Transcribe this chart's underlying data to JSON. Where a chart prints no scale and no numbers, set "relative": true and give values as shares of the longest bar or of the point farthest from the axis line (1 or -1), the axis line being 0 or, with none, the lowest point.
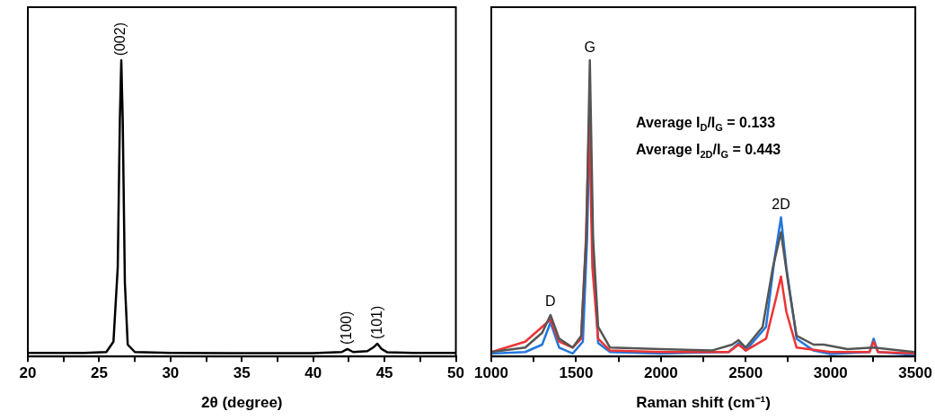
{
  "chart_data": [
    {
      "type": "line",
      "xlabel": "2θ (degree)",
      "relative": true,
      "xlim": [
        20,
        50
      ],
      "xticks": [
        20,
        {
          "value": 22.5,
          "label": null
        },
        25,
        {
          "value": 27.5,
          "label": null
        },
        30,
        {
          "value": 32.5,
          "label": null
        },
        35,
        {
          "value": 37.5,
          "label": null
        },
        40,
        {
          "value": 42.5,
          "label": null
        },
        45,
        {
          "value": 47.5,
          "label": null
        },
        50
      ],
      "series": [
        {
          "color": "#000000",
          "x": [
            20,
            24,
            25.5,
            26.0,
            26.3,
            26.45,
            26.55,
            26.65,
            26.8,
            27.0,
            27.5,
            30,
            35,
            40,
            42.0,
            42.4,
            42.8,
            43.8,
            44.2,
            44.5,
            44.8,
            45.2,
            47,
            50
          ],
          "values": [
            0.012,
            0.012,
            0.015,
            0.05,
            0.3,
            0.8,
            1,
            0.8,
            0.25,
            0.04,
            0.015,
            0.012,
            0.011,
            0.011,
            0.015,
            0.025,
            0.015,
            0.018,
            0.03,
            0.043,
            0.025,
            0.014,
            0.012,
            0.012
          ]
        }
      ],
      "annotations": [
        {
          "text": "(002)",
          "x": 26.55,
          "y": 1
        },
        {
          "text": "(100)",
          "x": 42.4,
          "y": 0.025
        },
        {
          "text": "(101)",
          "x": 44.5,
          "y": 0.043
        }
      ]
    },
    {
      "type": "line",
      "xlabel": "Raman shift (cm⁻¹)",
      "relative": true,
      "xlim": [
        1000,
        3500
      ],
      "xticks": [
        1000,
        {
          "value": 1250,
          "label": null
        },
        1500,
        {
          "value": 1750,
          "label": null
        },
        2000,
        {
          "value": 2250,
          "label": null
        },
        2500,
        {
          "value": 2750,
          "label": null
        },
        3000,
        {
          "value": 3250,
          "label": null
        },
        3500
      ],
      "series": [
        {
          "color": "#555555",
          "x": [
            1000,
            1200,
            1300,
            1349,
            1400,
            1480,
            1530,
            1560,
            1581,
            1600,
            1630,
            1700,
            2000,
            2300,
            2420,
            2458,
            2500,
            2600,
            2660,
            2708,
            2750,
            2800,
            2900,
            2960,
            3100,
            3254,
            3500
          ],
          "values": [
            0.015,
            0.03,
            0.08,
            0.14,
            0.06,
            0.03,
            0.07,
            0.4,
            1,
            0.4,
            0.1,
            0.03,
            0.025,
            0.02,
            0.04,
            0.055,
            0.03,
            0.1,
            0.3,
            0.42,
            0.25,
            0.07,
            0.04,
            0.04,
            0.025,
            0.03,
            0.015
          ]
        },
        {
          "color": "#ee3333",
          "x": [
            1000,
            1200,
            1300,
            1349,
            1400,
            1480,
            1530,
            1558,
            1577,
            1596,
            1630,
            1700,
            2000,
            2400,
            2458,
            2500,
            2620,
            2680,
            2708,
            2740,
            2800,
            3000,
            3230,
            3254,
            3280,
            3500
          ],
          "values": [
            0.015,
            0.05,
            0.1,
            0.125,
            0.05,
            0.03,
            0.06,
            0.4,
            0.8,
            0.3,
            0.06,
            0.02,
            0.015,
            0.015,
            0.04,
            0.02,
            0.06,
            0.2,
            0.27,
            0.15,
            0.03,
            0.015,
            0.015,
            0.05,
            0.015,
            0.01
          ]
        },
        {
          "color": "#2277dd",
          "x": [
            1000,
            1200,
            1300,
            1349,
            1400,
            1480,
            1540,
            1565,
            1581,
            1600,
            1630,
            1700,
            2000,
            2400,
            2458,
            2500,
            2620,
            2670,
            2708,
            2740,
            2800,
            2900,
            3000,
            3230,
            3254,
            3280,
            3500
          ],
          "values": [
            0.01,
            0.015,
            0.04,
            0.115,
            0.03,
            0.01,
            0.05,
            0.4,
            0.815,
            0.35,
            0.045,
            0.015,
            0.01,
            0.015,
            0.045,
            0.02,
            0.1,
            0.33,
            0.47,
            0.3,
            0.06,
            0.02,
            0.008,
            0.015,
            0.06,
            0.015,
            0.005
          ]
        }
      ],
      "annotations": [
        {
          "text": "D",
          "x": 1349,
          "y": 0.14
        },
        {
          "text": "G",
          "x": 1581,
          "y": 1
        },
        {
          "text": "2D",
          "x": 2708,
          "y": 0.47
        },
        "Average I$_{D}$/I$_{G}$ = 0.133",
        "Average I$_{2D}$/I$_{G}$ = 0.443"
      ]
    }
  ]
}
